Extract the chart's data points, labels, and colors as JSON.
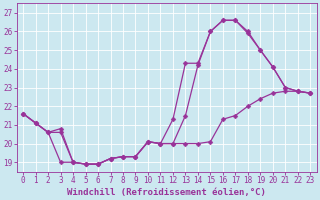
{
  "xlabel": "Windchill (Refroidissement éolien,°C)",
  "bg_color": "#cce8f0",
  "line_color": "#993399",
  "grid_color": "#ffffff",
  "xlim": [
    -0.5,
    23.5
  ],
  "ylim": [
    18.5,
    27.5
  ],
  "yticks": [
    19,
    20,
    21,
    22,
    23,
    24,
    25,
    26,
    27
  ],
  "xticks": [
    0,
    1,
    2,
    3,
    4,
    5,
    6,
    7,
    8,
    9,
    10,
    11,
    12,
    13,
    14,
    15,
    16,
    17,
    18,
    19,
    20,
    21,
    22,
    23
  ],
  "line1": {
    "x": [
      0,
      1,
      2,
      3,
      4,
      5,
      6,
      7,
      8,
      9,
      10,
      11,
      12,
      13,
      14,
      15,
      16,
      17,
      18,
      19,
      20,
      21,
      22,
      23
    ],
    "y": [
      21.6,
      21.1,
      20.6,
      19.0,
      19.0,
      18.9,
      18.9,
      19.2,
      19.3,
      19.3,
      20.1,
      20.0,
      20.0,
      20.0,
      20.0,
      20.1,
      21.3,
      21.5,
      22.0,
      22.4,
      22.7,
      22.8,
      22.8,
      22.7
    ]
  },
  "line2": {
    "x": [
      0,
      1,
      2,
      3,
      4,
      5,
      6,
      7,
      8,
      9,
      10,
      11,
      12,
      13,
      14,
      15,
      16,
      17,
      18,
      19,
      20,
      21,
      22,
      23
    ],
    "y": [
      21.6,
      21.1,
      20.6,
      20.6,
      19.0,
      18.9,
      18.9,
      19.2,
      19.3,
      19.3,
      20.1,
      20.0,
      21.3,
      24.3,
      24.3,
      26.0,
      26.6,
      26.6,
      25.9,
      25.0,
      24.1,
      23.0,
      22.8,
      22.7
    ]
  },
  "line3": {
    "x": [
      0,
      1,
      2,
      3,
      4,
      5,
      6,
      7,
      8,
      9,
      10,
      11,
      12,
      13,
      14,
      15,
      16,
      17,
      18,
      19,
      20,
      21,
      22,
      23
    ],
    "y": [
      21.6,
      21.1,
      20.6,
      20.8,
      19.0,
      18.9,
      18.9,
      19.2,
      19.3,
      19.3,
      20.1,
      20.0,
      20.0,
      21.5,
      24.2,
      26.0,
      26.6,
      26.6,
      26.0,
      25.0,
      24.1,
      23.0,
      22.8,
      22.7
    ]
  },
  "marker": "D",
  "markersize": 2.5,
  "linewidth": 0.9,
  "tick_fontsize": 5.5,
  "label_fontsize": 6.5
}
